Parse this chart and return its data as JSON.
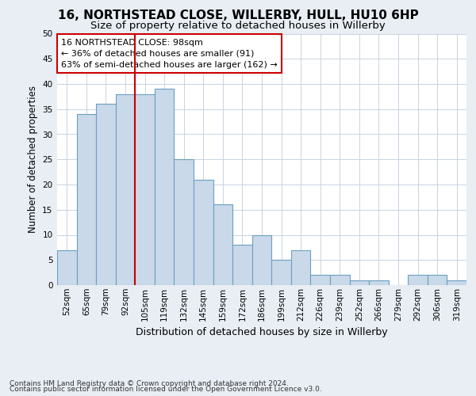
{
  "title1": "16, NORTHSTEAD CLOSE, WILLERBY, HULL, HU10 6HP",
  "title2": "Size of property relative to detached houses in Willerby",
  "xlabel": "Distribution of detached houses by size in Willerby",
  "ylabel": "Number of detached properties",
  "footnote1": "Contains HM Land Registry data © Crown copyright and database right 2024.",
  "footnote2": "Contains public sector information licensed under the Open Government Licence v3.0.",
  "annotation_line1": "16 NORTHSTEAD CLOSE: 98sqm",
  "annotation_line2": "← 36% of detached houses are smaller (91)",
  "annotation_line3": "63% of semi-detached houses are larger (162) →",
  "bar_labels": [
    "52sqm",
    "65sqm",
    "79sqm",
    "92sqm",
    "105sqm",
    "119sqm",
    "132sqm",
    "145sqm",
    "159sqm",
    "172sqm",
    "186sqm",
    "199sqm",
    "212sqm",
    "226sqm",
    "239sqm",
    "252sqm",
    "266sqm",
    "279sqm",
    "292sqm",
    "306sqm",
    "319sqm"
  ],
  "bar_values": [
    7,
    34,
    36,
    38,
    38,
    39,
    25,
    21,
    16,
    8,
    10,
    5,
    7,
    2,
    2,
    1,
    1,
    0,
    2,
    2,
    1
  ],
  "bar_color": "#c9d9ea",
  "bar_edge_color": "#6a9fc0",
  "vline_x_index": 3.5,
  "vline_color": "#cc0000",
  "ylim": [
    0,
    50
  ],
  "yticks": [
    0,
    5,
    10,
    15,
    20,
    25,
    30,
    35,
    40,
    45,
    50
  ],
  "box_color": "#cc0000",
  "bg_color": "#e8eef4",
  "plot_bg_color": "#ffffff",
  "grid_color": "#c8d4e0",
  "title1_fontsize": 11,
  "title2_fontsize": 9.5,
  "ylabel_fontsize": 8.5,
  "xlabel_fontsize": 9,
  "tick_fontsize": 7.5,
  "annot_fontsize": 8,
  "footnote_fontsize": 6.5
}
